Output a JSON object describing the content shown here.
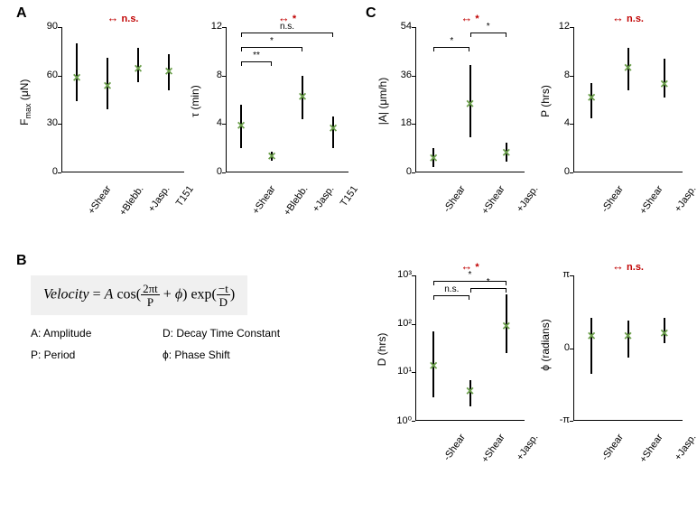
{
  "marker_color": "#6a9e4a",
  "sig_color": "#c00000",
  "bg": "#ffffff",
  "panelA": {
    "label": "A",
    "left": {
      "ylabel": "F_max (μN)",
      "ylim": [
        0,
        90
      ],
      "yticks": [
        0,
        30,
        60,
        90
      ],
      "overall_sig": "n.s.",
      "categories": [
        "+Shear",
        "+Blebb.",
        "+Jasp.",
        "T151"
      ],
      "points": [
        {
          "val": 58,
          "lo": 44,
          "hi": 80
        },
        {
          "val": 53,
          "lo": 39,
          "hi": 71
        },
        {
          "val": 64,
          "lo": 56,
          "hi": 77
        },
        {
          "val": 62,
          "lo": 51,
          "hi": 73
        }
      ]
    },
    "right": {
      "ylabel": "τ (min)",
      "ylim": [
        0,
        12
      ],
      "yticks": [
        0,
        4,
        8,
        12
      ],
      "overall_sig": "*",
      "categories": [
        "+Shear",
        "+Blebb.",
        "+Jasp.",
        "T151"
      ],
      "points": [
        {
          "val": 3.8,
          "lo": 2.0,
          "hi": 5.6
        },
        {
          "val": 1.3,
          "lo": 1.0,
          "hi": 1.7
        },
        {
          "val": 6.2,
          "lo": 4.4,
          "hi": 8.0
        },
        {
          "val": 3.6,
          "lo": 2.0,
          "hi": 4.6
        }
      ],
      "brackets": [
        {
          "from": 0,
          "to": 3,
          "label": "n.s.",
          "level": 2
        },
        {
          "from": 0,
          "to": 2,
          "label": "*",
          "level": 1
        },
        {
          "from": 0,
          "to": 1,
          "label": "**",
          "level": 0
        }
      ]
    }
  },
  "panelB": {
    "label": "B",
    "equation_lhs": "Velocity",
    "equation_frac1_num": "2πt",
    "equation_frac1_den": "P",
    "equation_frac2_num": "−t",
    "equation_frac2_den": "D",
    "legend": {
      "A": "A: Amplitude",
      "D": "D: Decay Time Constant",
      "P": "P: Period",
      "phi": "ϕ: Phase Shift"
    }
  },
  "panelC": {
    "label": "C",
    "categories": [
      "-Shear",
      "+Shear",
      "+Jasp."
    ],
    "topLeft": {
      "ylabel": "|A| (μm/h)",
      "ylim": [
        0,
        54
      ],
      "yticks": [
        0,
        18,
        36,
        54
      ],
      "overall_sig": "*",
      "points": [
        {
          "val": 5,
          "lo": 2,
          "hi": 9
        },
        {
          "val": 25,
          "lo": 13,
          "hi": 40
        },
        {
          "val": 7,
          "lo": 4,
          "hi": 11
        }
      ],
      "brackets": [
        {
          "from": 0,
          "to": 1,
          "label": "*",
          "level": 0
        },
        {
          "from": 1,
          "to": 2,
          "label": "*",
          "level": 1
        }
      ]
    },
    "topRight": {
      "ylabel": "P (hrs)",
      "ylim": [
        0,
        12
      ],
      "yticks": [
        0,
        4,
        8,
        12
      ],
      "overall_sig": "n.s.",
      "points": [
        {
          "val": 6.1,
          "lo": 4.5,
          "hi": 7.4
        },
        {
          "val": 8.6,
          "lo": 6.8,
          "hi": 10.3
        },
        {
          "val": 7.2,
          "lo": 6.2,
          "hi": 9.4
        }
      ]
    },
    "botLeft": {
      "ylabel": "D (hrs)",
      "ylim_log": [
        1,
        1000
      ],
      "ytick_labels": [
        "10⁰",
        "10¹",
        "10²",
        "10³"
      ],
      "ytick_vals": [
        1,
        10,
        100,
        1000
      ],
      "overall_sig": "*",
      "points": [
        {
          "val": 13,
          "lo": 3,
          "hi": 70
        },
        {
          "val": 4,
          "lo": 2,
          "hi": 7
        },
        {
          "val": 85,
          "lo": 25,
          "hi": 400
        }
      ],
      "brackets": [
        {
          "from": 0,
          "to": 2,
          "label": "*",
          "level": 1
        },
        {
          "from": 0,
          "to": 1,
          "label": "n.s.",
          "level": 0
        },
        {
          "from": 1,
          "to": 2,
          "label": "*",
          "level": 0.5
        }
      ]
    },
    "botRight": {
      "ylabel": "ϕ (radians)",
      "ylim": [
        -3.1416,
        3.1416
      ],
      "ytick_labels": [
        "-π",
        "0",
        "π"
      ],
      "ytick_vals": [
        -3.1416,
        0,
        3.1416
      ],
      "overall_sig": "n.s.",
      "points": [
        {
          "val": 0.5,
          "lo": -1.1,
          "hi": 1.3
        },
        {
          "val": 0.5,
          "lo": -0.4,
          "hi": 1.2
        },
        {
          "val": 0.6,
          "lo": 0.2,
          "hi": 1.3
        }
      ]
    }
  }
}
